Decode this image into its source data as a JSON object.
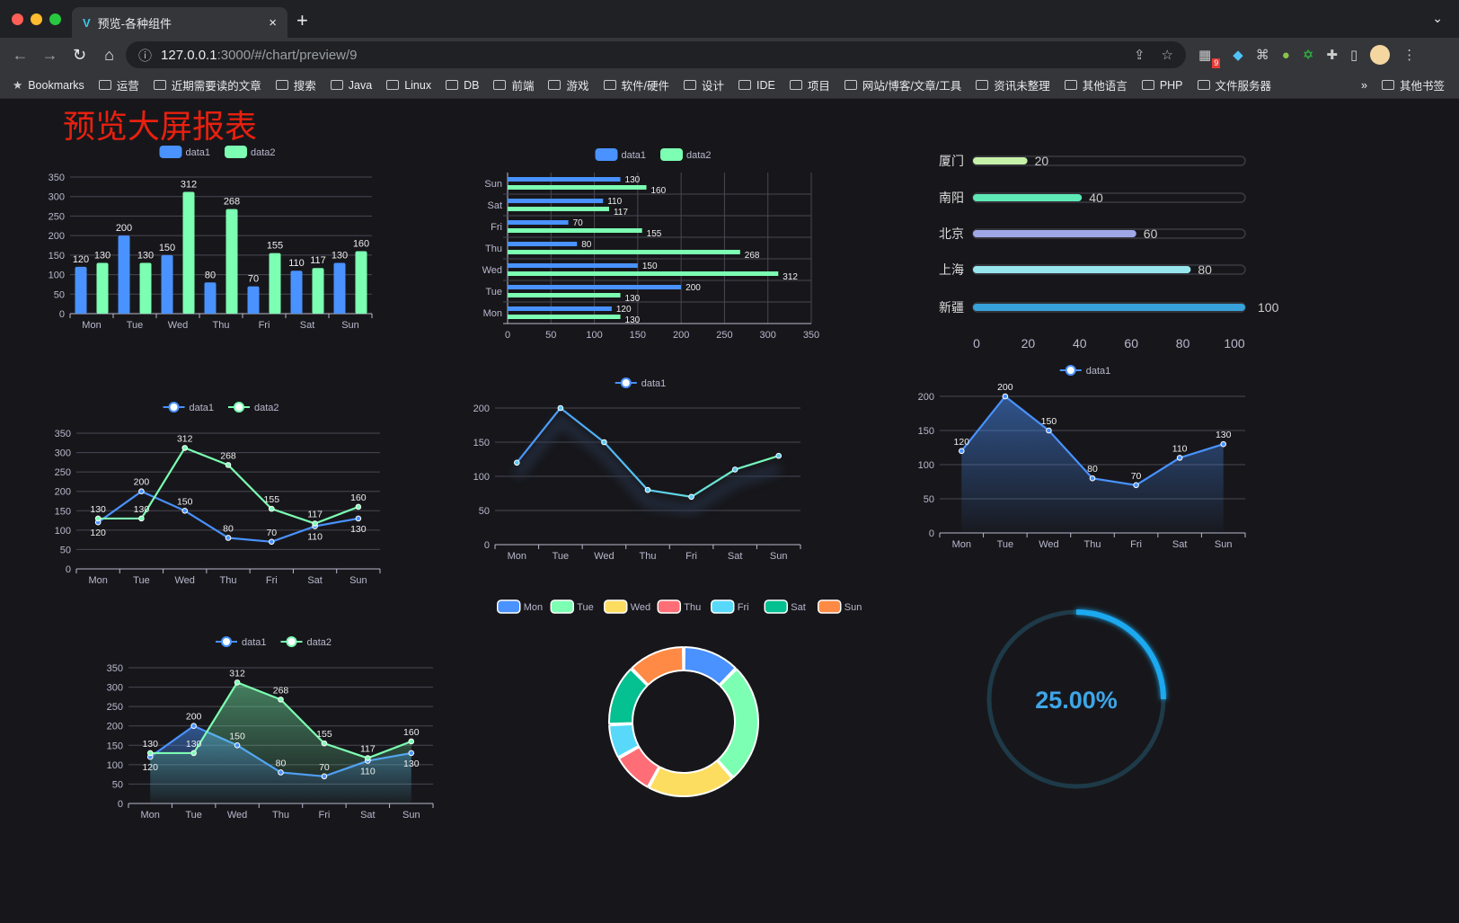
{
  "browser": {
    "tab_title": "预览-各种组件",
    "url_host": "127.0.0.1",
    "url_rest": ":3000/#/chart/preview/9",
    "extension_badge": "9",
    "bookmarks": [
      "Bookmarks",
      "运营",
      "近期需要读的文章",
      "搜索",
      "Java",
      "Linux",
      "DB",
      "前端",
      "游戏",
      "软件/硬件",
      "设计",
      "IDE",
      "项目",
      "网站/博客/文章/工具",
      "资讯未整理",
      "其他语言",
      "PHP",
      "文件服务器"
    ],
    "more": "»",
    "other_bookmarks": "其他书签"
  },
  "page": {
    "title": "预览大屏报表"
  },
  "colors": {
    "blue": "#4992ff",
    "green": "#7cffb2",
    "yellow": "#fddd60",
    "red": "#ff6e76",
    "cyan": "#58d9f9",
    "teal": "#05c091",
    "orange": "#ff8a45",
    "title": "#e8200f",
    "gauge": "#1fa9f0"
  },
  "chart_data": [
    {
      "id": "bar",
      "type": "bar",
      "categories": [
        "Mon",
        "Tue",
        "Wed",
        "Thu",
        "Fri",
        "Sat",
        "Sun"
      ],
      "series": [
        {
          "name": "data1",
          "values": [
            120,
            200,
            150,
            80,
            70,
            110,
            130
          ]
        },
        {
          "name": "data2",
          "values": [
            130,
            130,
            312,
            268,
            155,
            117,
            160
          ]
        }
      ],
      "ylim": [
        0,
        350
      ],
      "legend": "top-center",
      "grid": true
    },
    {
      "id": "hbar",
      "type": "bar",
      "orientation": "horizontal",
      "categories": [
        "Mon",
        "Tue",
        "Wed",
        "Thu",
        "Fri",
        "Sat",
        "Sun"
      ],
      "series": [
        {
          "name": "data1",
          "values": [
            120,
            200,
            150,
            80,
            70,
            110,
            130
          ]
        },
        {
          "name": "data2",
          "values": [
            130,
            130,
            312,
            268,
            155,
            117,
            160
          ]
        }
      ],
      "xlim": [
        0,
        350
      ],
      "legend": "top-center",
      "grid": true
    },
    {
      "id": "progress",
      "type": "bar",
      "orientation": "horizontal",
      "categories": [
        "厦门",
        "南阳",
        "北京",
        "上海",
        "新疆"
      ],
      "values": [
        20,
        40,
        60,
        80,
        100
      ],
      "xlim": [
        0,
        100
      ],
      "colors": [
        "#c6f1a8",
        "#5ee8b5",
        "#a0a7e6",
        "#97e6ee",
        "#37a2da"
      ]
    },
    {
      "id": "line2",
      "type": "line",
      "categories": [
        "Mon",
        "Tue",
        "Wed",
        "Thu",
        "Fri",
        "Sat",
        "Sun"
      ],
      "series": [
        {
          "name": "data1",
          "values": [
            120,
            200,
            150,
            80,
            70,
            110,
            130
          ]
        },
        {
          "name": "data2",
          "values": [
            130,
            130,
            312,
            268,
            155,
            117,
            160
          ]
        }
      ],
      "ylim": [
        0,
        350
      ],
      "legend": "top-center",
      "grid": true
    },
    {
      "id": "line1",
      "type": "line",
      "categories": [
        "Mon",
        "Tue",
        "Wed",
        "Thu",
        "Fri",
        "Sat",
        "Sun"
      ],
      "series": [
        {
          "name": "data1",
          "values": [
            120,
            200,
            150,
            80,
            70,
            110,
            130
          ]
        }
      ],
      "ylim": [
        0,
        200
      ],
      "legend": "top-center",
      "grid": true
    },
    {
      "id": "area1",
      "type": "area",
      "categories": [
        "Mon",
        "Tue",
        "Wed",
        "Thu",
        "Fri",
        "Sat",
        "Sun"
      ],
      "series": [
        {
          "name": "data1",
          "values": [
            120,
            200,
            150,
            80,
            70,
            110,
            130
          ]
        }
      ],
      "ylim": [
        0,
        200
      ],
      "legend": "top-center",
      "grid": true
    },
    {
      "id": "area2",
      "type": "area",
      "categories": [
        "Mon",
        "Tue",
        "Wed",
        "Thu",
        "Fri",
        "Sat",
        "Sun"
      ],
      "series": [
        {
          "name": "data1",
          "values": [
            120,
            200,
            150,
            80,
            70,
            110,
            130
          ]
        },
        {
          "name": "data2",
          "values": [
            130,
            130,
            312,
            268,
            155,
            117,
            160
          ]
        }
      ],
      "ylim": [
        0,
        350
      ],
      "legend": "top-center",
      "grid": true
    },
    {
      "id": "donut",
      "type": "pie",
      "categories": [
        "Mon",
        "Tue",
        "Wed",
        "Thu",
        "Fri",
        "Sat",
        "Sun"
      ],
      "values": [
        45,
        95,
        70,
        33,
        27,
        48,
        45
      ],
      "legend": "top-center"
    },
    {
      "id": "gauge",
      "type": "gauge",
      "value": 25,
      "label": "25.00%"
    }
  ]
}
